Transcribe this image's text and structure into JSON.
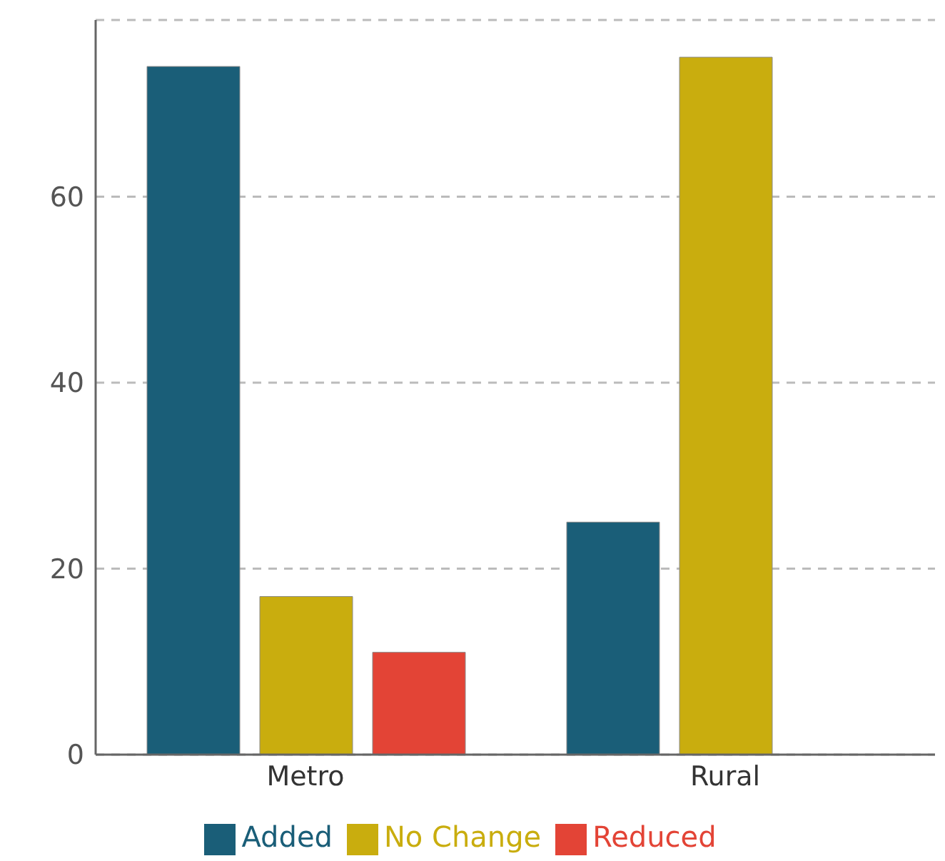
{
  "chart_data": {
    "type": "bar",
    "categories": [
      "Metro",
      "Rural"
    ],
    "series": [
      {
        "name": "Added",
        "color": "#1a5e78",
        "values": [
          74,
          25
        ]
      },
      {
        "name": "No Change",
        "color": "#c9ad0e",
        "values": [
          17,
          75
        ]
      },
      {
        "name": "Reduced",
        "color": "#e34436",
        "values": [
          11,
          null
        ]
      }
    ],
    "ylim": [
      0,
      79
    ],
    "yticks": [
      0,
      20,
      40,
      60
    ],
    "grid": "y",
    "legend": "bottom"
  }
}
